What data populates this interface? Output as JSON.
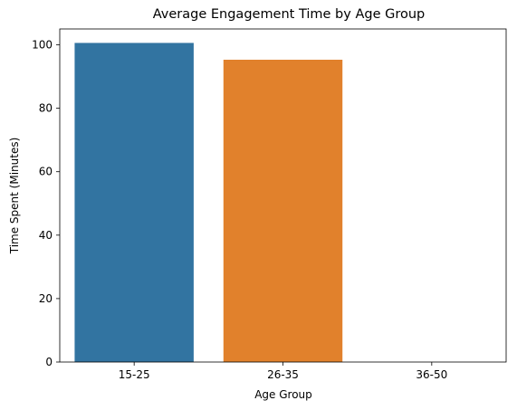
{
  "chart_data": {
    "type": "bar",
    "title": "Average Engagement Time by Age Group",
    "xlabel": "Age Group",
    "ylabel": "Time Spent (Minutes)",
    "categories": [
      "15-25",
      "26-35",
      "36-50"
    ],
    "values": [
      100.6,
      95.3,
      0
    ],
    "colors": [
      "#3274a1",
      "#e1812c",
      "#3a923a"
    ],
    "ylim": [
      0,
      105
    ],
    "yticks": [
      0,
      20,
      40,
      60,
      80,
      100
    ],
    "grid": false
  }
}
